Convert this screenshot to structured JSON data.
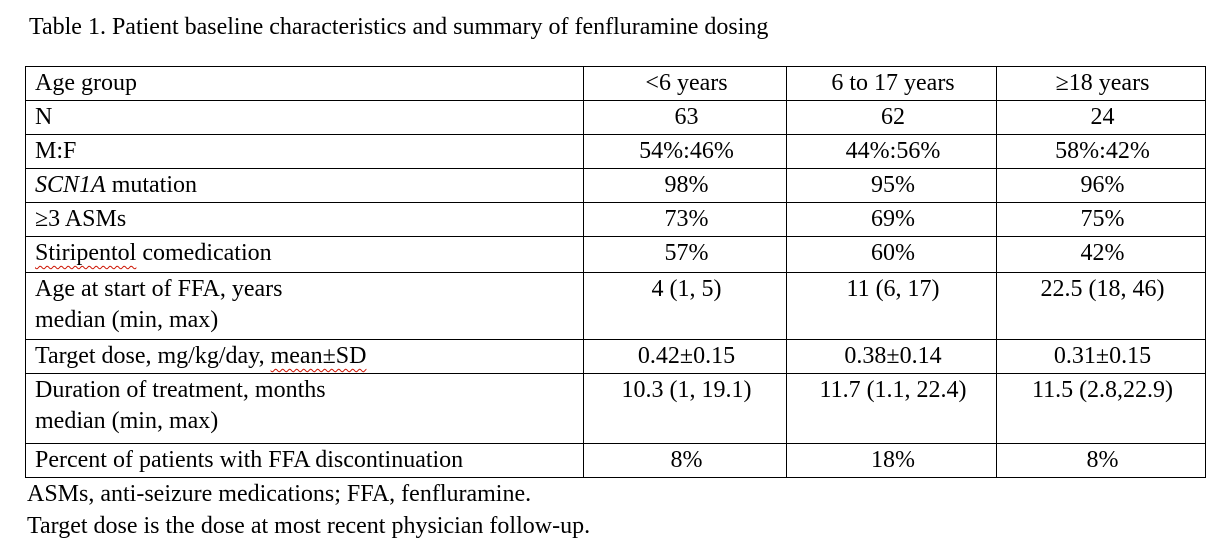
{
  "title": "Table 1. Patient baseline characteristics and summary of fenfluramine dosing",
  "table": {
    "header_label": "Age group",
    "columns": [
      "<6 years",
      "6 to 17 years",
      "≥18 years"
    ],
    "rows": [
      {
        "label": "N",
        "values": [
          "63",
          "62",
          "24"
        ]
      },
      {
        "label": "M:F",
        "values": [
          "54%:46%",
          "44%:56%",
          "58%:42%"
        ]
      },
      {
        "label_italic": "SCN1A",
        "label_rest": " mutation",
        "values": [
          "98%",
          "95%",
          "96%"
        ]
      },
      {
        "label": "≥3 ASMs",
        "values": [
          "73%",
          "69%",
          "75%"
        ]
      },
      {
        "label_misspelled": "Stiripentol",
        "label_rest": " comedication",
        "values": [
          "57%",
          "60%",
          "42%"
        ]
      },
      {
        "label_line1": "Age at start of FFA, years",
        "label_line2": "median (min, max)",
        "values": [
          "4 (1, 5)",
          "11 (6, 17)",
          "22.5 (18, 46)"
        ]
      },
      {
        "label_prefix": "Target dose, mg/kg/day, ",
        "label_misspelled": "mean±SD",
        "values": [
          "0.42±0.15",
          "0.38±0.14",
          "0.31±0.15"
        ]
      },
      {
        "label_line1": "Duration of treatment, months",
        "label_line2": "median (min, max)",
        "values": [
          "10.3 (1, 19.1)",
          "11.7 (1.1, 22.4)",
          "11.5 (2.8,22.9)"
        ]
      },
      {
        "label": "Percent of patients with FFA discontinuation",
        "values": [
          "8%",
          "18%",
          "8%"
        ]
      }
    ]
  },
  "footnotes": [
    "ASMs, anti-seizure medications; FFA, fenfluramine.",
    "Target dose is the dose at most recent physician follow-up."
  ],
  "colors": {
    "text": "#000000",
    "border": "#000000",
    "spellcheck_underline": "#cc1100",
    "background": "#ffffff"
  }
}
